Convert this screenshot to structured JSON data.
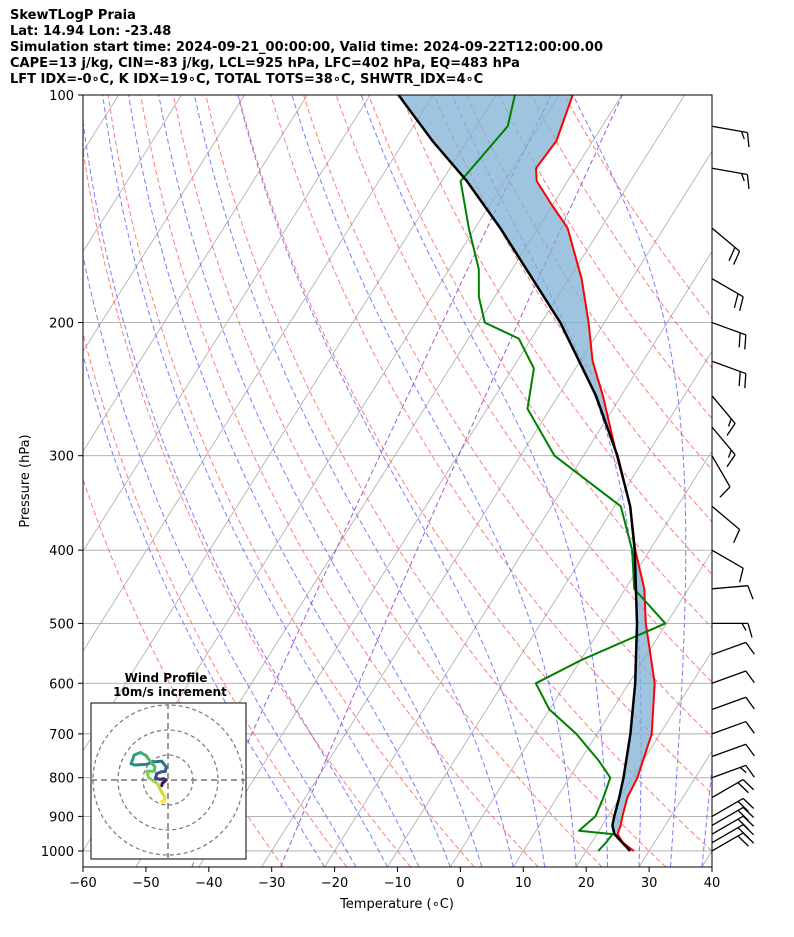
{
  "header": {
    "line1": "SkewTLogP Praia",
    "line2": "Lat: 14.94   Lon: -23.48",
    "line3": "Simulation start time: 2024-09-21_00:00:00, Valid time: 2024-09-22T12:00:00.00",
    "line4": "CAPE=13 j/kg, CIN=-83 j/kg, LCL=925 hPa, LFC=402 hPa, EQ=483 hPa",
    "line5": "LFT IDX=-0∘C, K IDX=19∘C, TOTAL TOTS=38∘C, SHWTR_IDX=4∘C"
  },
  "chart_data": {
    "type": "line",
    "chart_kind": "skew-T log-P",
    "xlabel": "Temperature (∘C)",
    "ylabel": "Pressure (hPa)",
    "xlim": [
      -60,
      40
    ],
    "ylim": [
      1050,
      100
    ],
    "y_scale": "log",
    "grid": true,
    "x_ticks": [
      "−60",
      "−50",
      "−40",
      "−30",
      "−20",
      "−10",
      "0",
      "10",
      "20",
      "30",
      "40"
    ],
    "y_ticks": [
      "100",
      "200",
      "300",
      "400",
      "500",
      "600",
      "700",
      "800",
      "900",
      "1000"
    ],
    "colors": {
      "temperature": "#ff0000",
      "dewpoint": "#008000",
      "parcel": "#000000",
      "cape_fill": "#7fb0d6",
      "dry_adiabats": "#ff6464",
      "moist_adiabats": "#6464ff",
      "mixing_ratio": "#9944cc",
      "isotherms": "#aaaaaa"
    },
    "series": [
      {
        "key": "temperature",
        "points": [
          [
            1000,
            27.6
          ],
          [
            975,
            25.0
          ],
          [
            950,
            23.3
          ],
          [
            925,
            22.9
          ],
          [
            900,
            22.3
          ],
          [
            850,
            21.2
          ],
          [
            800,
            20.8
          ],
          [
            700,
            18.7
          ],
          [
            600,
            14.1
          ],
          [
            500,
            6.7
          ],
          [
            450,
            3.0
          ],
          [
            400,
            -2.3
          ],
          [
            350,
            -7.5
          ],
          [
            300,
            -14.7
          ],
          [
            250,
            -22.9
          ],
          [
            225,
            -28.0
          ],
          [
            200,
            -32.5
          ],
          [
            175,
            -38.0
          ],
          [
            150,
            -45.3
          ],
          [
            140,
            -50.0
          ],
          [
            130,
            -54.9
          ],
          [
            125,
            -56.3
          ],
          [
            115,
            -55.8
          ],
          [
            100,
            -57.8
          ]
        ]
      },
      {
        "key": "dewpoint",
        "points": [
          [
            1000,
            21.9
          ],
          [
            975,
            22.3
          ],
          [
            950,
            22.5
          ],
          [
            940,
            16.8
          ],
          [
            920,
            17.4
          ],
          [
            900,
            18.0
          ],
          [
            850,
            17.4
          ],
          [
            800,
            16.5
          ],
          [
            760,
            13.0
          ],
          [
            700,
            6.7
          ],
          [
            650,
            0.0
          ],
          [
            600,
            -4.8
          ],
          [
            560,
            0.0
          ],
          [
            500,
            9.8
          ],
          [
            450,
            1.4
          ],
          [
            400,
            -2.8
          ],
          [
            350,
            -9.0
          ],
          [
            300,
            -24.6
          ],
          [
            260,
            -33.6
          ],
          [
            230,
            -36.6
          ],
          [
            210,
            -42.0
          ],
          [
            200,
            -49.0
          ],
          [
            185,
            -52.5
          ],
          [
            170,
            -55.3
          ],
          [
            150,
            -61.0
          ],
          [
            130,
            -67.0
          ],
          [
            110,
            -65.0
          ],
          [
            100,
            -67.0
          ]
        ]
      },
      {
        "key": "parcel",
        "points": [
          [
            1000,
            27.0
          ],
          [
            950,
            22.8
          ],
          [
            925,
            21.6
          ],
          [
            900,
            21.0
          ],
          [
            850,
            19.9
          ],
          [
            800,
            18.6
          ],
          [
            700,
            15.3
          ],
          [
            600,
            11.0
          ],
          [
            500,
            5.3
          ],
          [
            400,
            -2.4
          ],
          [
            350,
            -7.5
          ],
          [
            300,
            -14.6
          ],
          [
            250,
            -24.0
          ],
          [
            200,
            -37.0
          ],
          [
            150,
            -56.0
          ],
          [
            130,
            -66.0
          ],
          [
            115,
            -75.5
          ],
          [
            100,
            -85.5
          ]
        ]
      }
    ],
    "wind_barbs": [
      {
        "pressure": 1000,
        "direction_deg": 60,
        "speed_kt": 20
      },
      {
        "pressure": 975,
        "direction_deg": 60,
        "speed_kt": 20
      },
      {
        "pressure": 950,
        "direction_deg": 60,
        "speed_kt": 20
      },
      {
        "pressure": 925,
        "direction_deg": 60,
        "speed_kt": 20
      },
      {
        "pressure": 900,
        "direction_deg": 60,
        "speed_kt": 20
      },
      {
        "pressure": 850,
        "direction_deg": 60,
        "speed_kt": 20
      },
      {
        "pressure": 800,
        "direction_deg": 70,
        "speed_kt": 15
      },
      {
        "pressure": 750,
        "direction_deg": 70,
        "speed_kt": 10
      },
      {
        "pressure": 700,
        "direction_deg": 70,
        "speed_kt": 10
      },
      {
        "pressure": 650,
        "direction_deg": 70,
        "speed_kt": 10
      },
      {
        "pressure": 600,
        "direction_deg": 70,
        "speed_kt": 10
      },
      {
        "pressure": 550,
        "direction_deg": 70,
        "speed_kt": 10
      },
      {
        "pressure": 500,
        "direction_deg": 90,
        "speed_kt": 15
      },
      {
        "pressure": 450,
        "direction_deg": 85,
        "speed_kt": 10
      },
      {
        "pressure": 400,
        "direction_deg": 120,
        "speed_kt": 10
      },
      {
        "pressure": 350,
        "direction_deg": 130,
        "speed_kt": 10
      },
      {
        "pressure": 300,
        "direction_deg": 150,
        "speed_kt": 10
      },
      {
        "pressure": 275,
        "direction_deg": 140,
        "speed_kt": 15
      },
      {
        "pressure": 250,
        "direction_deg": 140,
        "speed_kt": 15
      },
      {
        "pressure": 225,
        "direction_deg": 110,
        "speed_kt": 20
      },
      {
        "pressure": 200,
        "direction_deg": 110,
        "speed_kt": 20
      },
      {
        "pressure": 175,
        "direction_deg": 120,
        "speed_kt": 20
      },
      {
        "pressure": 150,
        "direction_deg": 130,
        "speed_kt": 20
      },
      {
        "pressure": 125,
        "direction_deg": 100,
        "speed_kt": 15
      },
      {
        "pressure": 110,
        "direction_deg": 100,
        "speed_kt": 15
      }
    ],
    "hodograph": {
      "title_line1": "Wind Profile",
      "title_line2": "10m/s increment",
      "ring_increment_ms": 10,
      "rings": 3,
      "colormap": "viridis",
      "points_uv": [
        [
          -1.0,
          -0.9
        ],
        [
          -0.9,
          -0.5
        ],
        [
          -0.6,
          -0.3
        ],
        [
          -0.3,
          0.0
        ],
        [
          -0.7,
          0.2
        ],
        [
          -1.3,
          0.1
        ],
        [
          -2.0,
          0.3
        ],
        [
          -1.8,
          1.0
        ],
        [
          -1.1,
          1.3
        ],
        [
          -0.4,
          1.4
        ],
        [
          -0.3,
          2.1
        ],
        [
          -1.0,
          3.0
        ],
        [
          -2.3,
          2.9
        ],
        [
          -3.5,
          2.5
        ],
        [
          -5.3,
          2.4
        ],
        [
          -5.9,
          2.6
        ],
        [
          -5.4,
          4.0
        ],
        [
          -4.4,
          4.4
        ],
        [
          -3.5,
          3.9
        ],
        [
          -3.0,
          3.2
        ],
        [
          -2.1,
          2.1
        ],
        [
          -2.2,
          1.4
        ],
        [
          -3.4,
          1.4
        ],
        [
          -3.1,
          0.4
        ],
        [
          -2.1,
          -0.3
        ],
        [
          -1.6,
          -0.7
        ],
        [
          -1.0,
          -2.0
        ],
        [
          -0.5,
          -2.6
        ],
        [
          -0.6,
          -3.4
        ],
        [
          -1.0,
          -3.4
        ]
      ]
    }
  }
}
